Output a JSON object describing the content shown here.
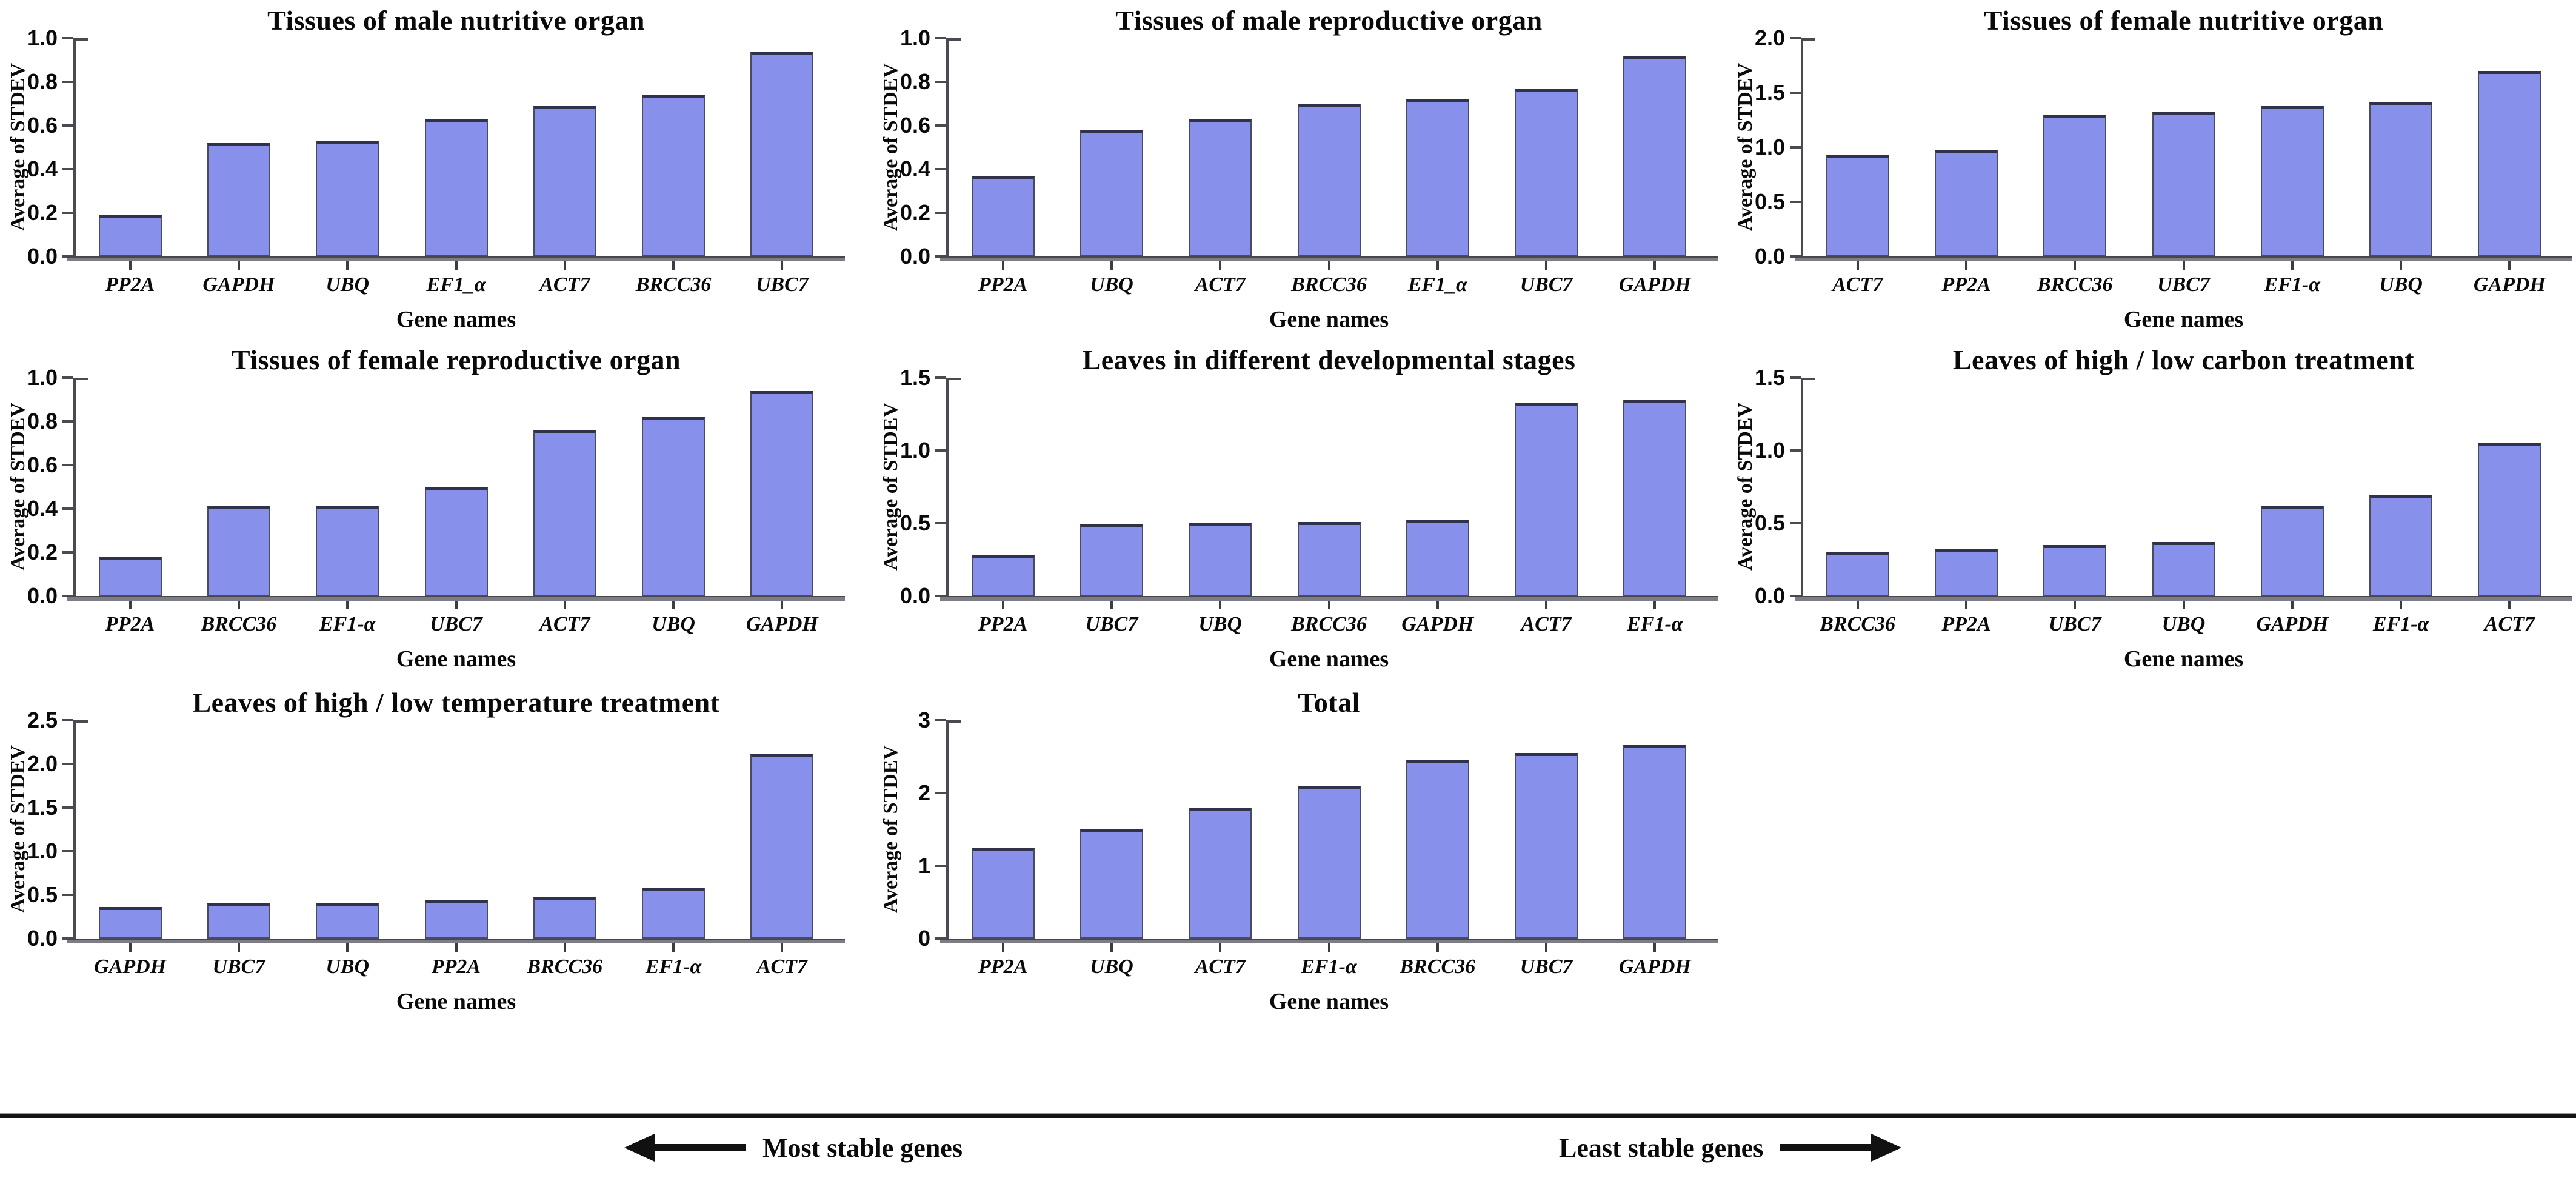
{
  "figure_ylabel": "Average of STDEV",
  "figure_xlabel": "Gene names",
  "colors": {
    "bar_fill": "#8791ec",
    "bar_border": "#4a4c5e",
    "bar_top_cap": "#30324a",
    "axis": "#4a4a52",
    "baseline": "#7d7d85",
    "divider": "#141414",
    "text": "#0a0a0a"
  },
  "chart_data": [
    {
      "type": "bar",
      "title": "Tissues of male nutritive organ",
      "ylabel": "Average of STDEV",
      "xlabel": "Gene names",
      "ylim": [
        0,
        1.0
      ],
      "yticks": [
        "0.0",
        "0.2",
        "0.4",
        "0.6",
        "0.8",
        "1.0"
      ],
      "grid": false,
      "categories": [
        "PP2A",
        "GAPDH",
        "UBQ",
        "EF1_α",
        "ACT7",
        "BRCC36",
        "UBC7"
      ],
      "values": [
        0.19,
        0.52,
        0.53,
        0.63,
        0.69,
        0.74,
        0.94
      ]
    },
    {
      "type": "bar",
      "title": "Tissues of male reproductive organ",
      "ylabel": "Average of STDEV",
      "xlabel": "Gene names",
      "ylim": [
        0,
        1.0
      ],
      "yticks": [
        "0.0",
        "0.2",
        "0.4",
        "0.6",
        "0.8",
        "1.0"
      ],
      "grid": false,
      "categories": [
        "PP2A",
        "UBQ",
        "ACT7",
        "BRCC36",
        "EF1_α",
        "UBC7",
        "GAPDH"
      ],
      "values": [
        0.37,
        0.58,
        0.63,
        0.7,
        0.72,
        0.77,
        0.92
      ]
    },
    {
      "type": "bar",
      "title": "Tissues of female nutritive organ",
      "ylabel": "Average of STDEV",
      "xlabel": "Gene names",
      "ylim": [
        0,
        2.0
      ],
      "yticks": [
        "0.0",
        "0.5",
        "1.0",
        "1.5",
        "2.0"
      ],
      "grid": false,
      "categories": [
        "ACT7",
        "PP2A",
        "BRCC36",
        "UBC7",
        "EF1-α",
        "UBQ",
        "GAPDH"
      ],
      "values": [
        0.93,
        0.98,
        1.3,
        1.32,
        1.38,
        1.41,
        1.7
      ]
    },
    {
      "type": "bar",
      "title": "Tissues of female reproductive organ",
      "ylabel": "Average of STDEV",
      "xlabel": "Gene names",
      "ylim": [
        0,
        1.0
      ],
      "yticks": [
        "0.0",
        "0.2",
        "0.4",
        "0.6",
        "0.8",
        "1.0"
      ],
      "grid": false,
      "categories": [
        "PP2A",
        "BRCC36",
        "EF1-α",
        "UBC7",
        "ACT7",
        "UBQ",
        "GAPDH"
      ],
      "values": [
        0.18,
        0.41,
        0.41,
        0.5,
        0.76,
        0.82,
        0.94
      ]
    },
    {
      "type": "bar",
      "title": "Leaves in different developmental stages",
      "ylabel": "Average of STDEV",
      "xlabel": "Gene names",
      "ylim": [
        0,
        1.5
      ],
      "yticks": [
        "0.0",
        "0.5",
        "1.0",
        "1.5"
      ],
      "grid": false,
      "categories": [
        "PP2A",
        "UBC7",
        "UBQ",
        "BRCC36",
        "GAPDH",
        "ACT7",
        "EF1-α"
      ],
      "values": [
        0.28,
        0.49,
        0.5,
        0.51,
        0.52,
        1.33,
        1.35
      ]
    },
    {
      "type": "bar",
      "title": "Leaves of high / low carbon treatment",
      "ylabel": "Average of STDEV",
      "xlabel": "Gene names",
      "ylim": [
        0,
        1.5
      ],
      "yticks": [
        "0.0",
        "0.5",
        "1.0",
        "1.5"
      ],
      "grid": false,
      "categories": [
        "BRCC36",
        "PP2A",
        "UBC7",
        "UBQ",
        "GAPDH",
        "EF1-α",
        "ACT7"
      ],
      "values": [
        0.3,
        0.32,
        0.35,
        0.37,
        0.62,
        0.69,
        1.05
      ]
    },
    {
      "type": "bar",
      "title": "Leaves of high / low temperature treatment",
      "ylabel": "Average of STDEV",
      "xlabel": "Gene names",
      "ylim": [
        0,
        2.5
      ],
      "yticks": [
        "0.0",
        "0.5",
        "1.0",
        "1.5",
        "2.0",
        "2.5"
      ],
      "grid": false,
      "categories": [
        "GAPDH",
        "UBC7",
        "UBQ",
        "PP2A",
        "BRCC36",
        "EF1-α",
        "ACT7"
      ],
      "values": [
        0.36,
        0.4,
        0.41,
        0.44,
        0.48,
        0.58,
        2.12
      ]
    },
    {
      "type": "bar",
      "title": "Total",
      "ylabel": "Average of STDEV",
      "xlabel": "Gene names",
      "ylim": [
        0,
        3
      ],
      "yticks": [
        "0",
        "1",
        "2",
        "3"
      ],
      "grid": false,
      "categories": [
        "PP2A",
        "UBQ",
        "ACT7",
        "EF1-α",
        "BRCC36",
        "UBC7",
        "GAPDH"
      ],
      "values": [
        1.25,
        1.5,
        1.8,
        2.1,
        2.45,
        2.55,
        2.67
      ]
    }
  ],
  "footer": {
    "most_stable_label": "Most stable genes",
    "least_stable_label": "Least stable genes"
  }
}
